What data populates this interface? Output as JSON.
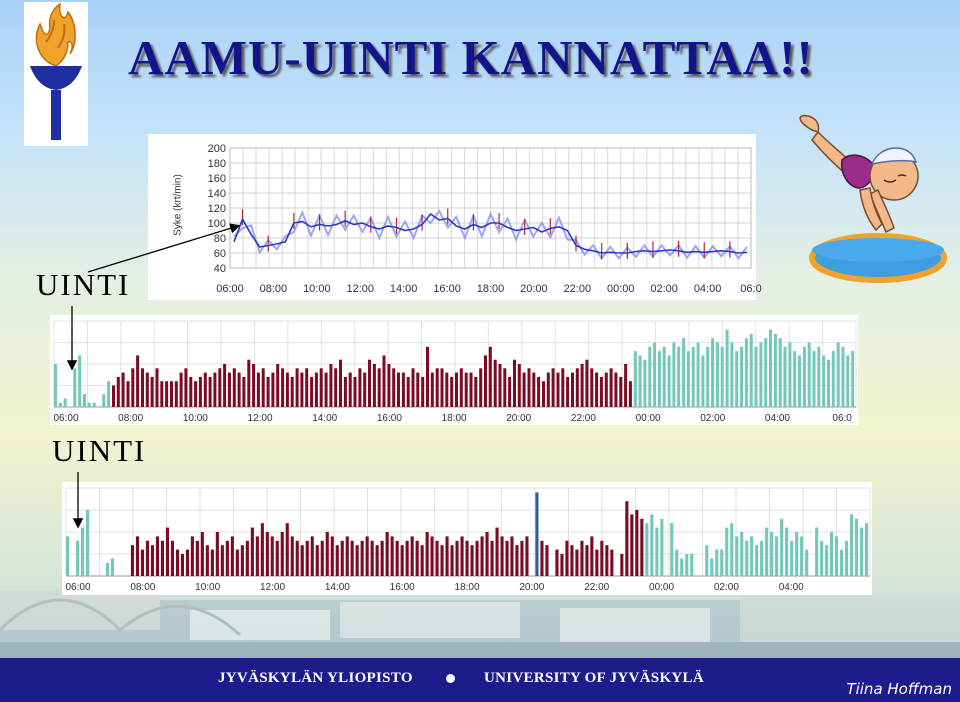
{
  "title": "AAMU-UINTI KANNATTAA!!",
  "labels": {
    "uinti_1": "UINTI",
    "uinti_2": "UINTI"
  },
  "footer": {
    "left": "JYVÄSKYLÄN YLIOPISTO",
    "right": "UNIVERSITY OF JYVÄSKYLÄ",
    "author": "Tiina Hoffman"
  },
  "icons": {
    "logo": "university-torch-logo",
    "swimmer": "diving-swimmer-clipart"
  },
  "colors": {
    "title": "#13148a",
    "footer": "#1c1c8c",
    "activity_bar": "#7a0b22",
    "rest_bar": "#73c8ba",
    "marker_bar": "#2f5f96",
    "hr_line": "#2f39c8",
    "hr_band": "#8a8ff0",
    "hr_peak": "#b3243f"
  },
  "chart_data": [
    {
      "type": "line",
      "ylabel": "Syke (krt/min)",
      "y_ticks": [
        "200",
        "180",
        "160",
        "140",
        "120",
        "100",
        "80",
        "60",
        "40"
      ],
      "ylim": [
        40,
        200
      ],
      "x_ticks": [
        "06:00",
        "08:00",
        "10:00",
        "12:00",
        "14:00",
        "16:00",
        "18:00",
        "20:00",
        "22:00",
        "00:00",
        "02:00",
        "04:00",
        "06:0"
      ],
      "grid": true,
      "series": [
        {
          "values": [
            75,
            105,
            85,
            68,
            70,
            72,
            75,
            100,
            102,
            95,
            98,
            96,
            98,
            103,
            98,
            100,
            95,
            92,
            96,
            94,
            90,
            92,
            98,
            112,
            104,
            106,
            96,
            92,
            98,
            94,
            100,
            100,
            94,
            90,
            92,
            94,
            88,
            93,
            95,
            90,
            70,
            65,
            63,
            60,
            61,
            60,
            60,
            62,
            63,
            62,
            63,
            64,
            63,
            61,
            62,
            61,
            62,
            63,
            62,
            60,
            61
          ]
        }
      ]
    },
    {
      "type": "bar",
      "x_ticks": [
        "06:00",
        "08:00",
        "10:00",
        "12:00",
        "14:00",
        "16:00",
        "18:00",
        "20:00",
        "22:00",
        "00:00",
        "02:00",
        "04:00",
        "06:0"
      ],
      "ylim": [
        0,
        1
      ],
      "grid": true,
      "series": [
        {
          "values": [
            0.5,
            0.05,
            0.1,
            0.0,
            0.45,
            0.6,
            0.15,
            0.05,
            0.05,
            0.0,
            0.15,
            0.3,
            0.25,
            0.35,
            0.4,
            0.3,
            0.45,
            0.6,
            0.45,
            0.4,
            0.35,
            0.45,
            0.3,
            0.3,
            0.3,
            0.3,
            0.4,
            0.45,
            0.35,
            0.3,
            0.35,
            0.4,
            0.35,
            0.4,
            0.45,
            0.5,
            0.4,
            0.45,
            0.4,
            0.35,
            0.55,
            0.5,
            0.4,
            0.45,
            0.35,
            0.4,
            0.5,
            0.45,
            0.4,
            0.35,
            0.45,
            0.4,
            0.45,
            0.35,
            0.4,
            0.45,
            0.4,
            0.5,
            0.45,
            0.55,
            0.35,
            0.4,
            0.35,
            0.45,
            0.4,
            0.55,
            0.5,
            0.45,
            0.6,
            0.5,
            0.45,
            0.4,
            0.4,
            0.35,
            0.45,
            0.4,
            0.35,
            0.7,
            0.4,
            0.45,
            0.45,
            0.4,
            0.35,
            0.4,
            0.45,
            0.4,
            0.4,
            0.35,
            0.45,
            0.6,
            0.7,
            0.55,
            0.5,
            0.45,
            0.35,
            0.55,
            0.5,
            0.4,
            0.45,
            0.4,
            0.35,
            0.3,
            0.4,
            0.45,
            0.4,
            0.45,
            0.35,
            0.4,
            0.45,
            0.5,
            0.55,
            0.45,
            0.4,
            0.35,
            0.4,
            0.45,
            0.4,
            0.35,
            0.5,
            0.3,
            0.65,
            0.6,
            0.55,
            0.7,
            0.75,
            0.65,
            0.7,
            0.6,
            0.75,
            0.7,
            0.8,
            0.65,
            0.7,
            0.75,
            0.6,
            0.7,
            0.8,
            0.75,
            0.7,
            0.9,
            0.75,
            0.65,
            0.7,
            0.8,
            0.85,
            0.7,
            0.75,
            0.8,
            0.9,
            0.85,
            0.8,
            0.7,
            0.75,
            0.65,
            0.6,
            0.7,
            0.75,
            0.65,
            0.7,
            0.6,
            0.55,
            0.65,
            0.75,
            0.7,
            0.6,
            0.65
          ]
        }
      ]
    },
    {
      "type": "bar",
      "x_ticks": [
        "06:00",
        "08:00",
        "10:00",
        "12:00",
        "14:00",
        "16:00",
        "18:00",
        "20:00",
        "22:00",
        "00:00",
        "02:00",
        "04:00"
      ],
      "ylim": [
        0,
        1
      ],
      "grid": true,
      "series": [
        {
          "values": [
            0.45,
            0.0,
            0.4,
            0.55,
            0.75,
            0.0,
            0.0,
            0.0,
            0.15,
            0.2,
            0.0,
            0.0,
            0.0,
            0.35,
            0.45,
            0.3,
            0.4,
            0.35,
            0.45,
            0.4,
            0.55,
            0.4,
            0.3,
            0.25,
            0.3,
            0.45,
            0.4,
            0.5,
            0.35,
            0.3,
            0.5,
            0.35,
            0.4,
            0.45,
            0.3,
            0.35,
            0.4,
            0.55,
            0.45,
            0.6,
            0.5,
            0.45,
            0.4,
            0.5,
            0.6,
            0.45,
            0.4,
            0.35,
            0.4,
            0.45,
            0.35,
            0.4,
            0.5,
            0.45,
            0.35,
            0.4,
            0.45,
            0.4,
            0.35,
            0.4,
            0.45,
            0.4,
            0.35,
            0.4,
            0.5,
            0.45,
            0.4,
            0.35,
            0.4,
            0.45,
            0.4,
            0.35,
            0.5,
            0.45,
            0.4,
            0.35,
            0.45,
            0.35,
            0.4,
            0.45,
            0.4,
            0.35,
            0.4,
            0.45,
            0.5,
            0.4,
            0.55,
            0.45,
            0.4,
            0.45,
            0.35,
            0.4,
            0.45,
            0.0,
            0.95,
            0.4,
            0.35,
            0.0,
            0.3,
            0.25,
            0.4,
            0.35,
            0.3,
            0.4,
            0.35,
            0.45,
            0.3,
            0.4,
            0.35,
            0.3,
            0.0,
            0.25,
            0.85,
            0.7,
            0.75,
            0.65,
            0.6,
            0.7,
            0.55,
            0.65,
            0.0,
            0.6,
            0.3,
            0.2,
            0.25,
            0.25,
            0.0,
            0.0,
            0.35,
            0.2,
            0.3,
            0.3,
            0.55,
            0.6,
            0.45,
            0.5,
            0.4,
            0.45,
            0.35,
            0.4,
            0.55,
            0.5,
            0.45,
            0.65,
            0.55,
            0.4,
            0.5,
            0.45,
            0.3,
            0.0,
            0.55,
            0.4,
            0.35,
            0.5,
            0.45,
            0.3,
            0.4,
            0.7,
            0.65,
            0.55,
            0.6
          ]
        }
      ]
    }
  ]
}
